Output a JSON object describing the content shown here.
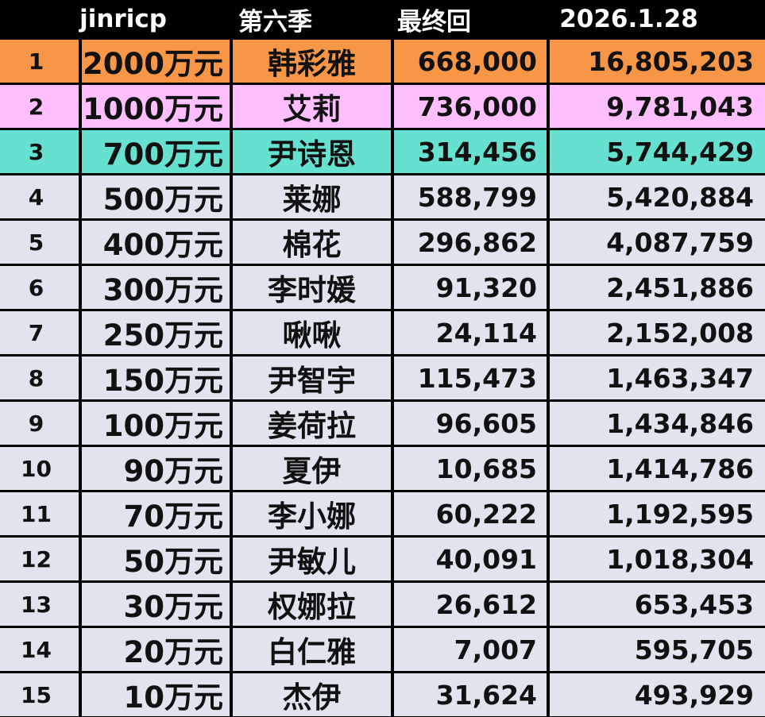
{
  "header": {
    "brand": "jinricp",
    "season": "第六季",
    "episode": "最终回",
    "date": "2026.1.28"
  },
  "colors": {
    "first": "#f79646",
    "second": "#ffbfff",
    "third": "#66e0cf",
    "rest": "#dfe4ee",
    "background": "#000000"
  },
  "rows": [
    {
      "rank": "1",
      "prize": "2000万元",
      "name": "韩彩雅",
      "votes": "668,000",
      "total": "16,805,203"
    },
    {
      "rank": "2",
      "prize": "1000万元",
      "name": "艾莉",
      "votes": "736,000",
      "total": "9,781,043"
    },
    {
      "rank": "3",
      "prize": "700万元",
      "name": "尹诗恩",
      "votes": "314,456",
      "total": "5,744,429"
    },
    {
      "rank": "4",
      "prize": "500万元",
      "name": "莱娜",
      "votes": "588,799",
      "total": "5,420,884"
    },
    {
      "rank": "5",
      "prize": "400万元",
      "name": "棉花",
      "votes": "296,862",
      "total": "4,087,759"
    },
    {
      "rank": "6",
      "prize": "300万元",
      "name": "李时媛",
      "votes": "91,320",
      "total": "2,451,886"
    },
    {
      "rank": "7",
      "prize": "250万元",
      "name": "啾啾",
      "votes": "24,114",
      "total": "2,152,008"
    },
    {
      "rank": "8",
      "prize": "150万元",
      "name": "尹智宇",
      "votes": "115,473",
      "total": "1,463,347"
    },
    {
      "rank": "9",
      "prize": "100万元",
      "name": "姜荷拉",
      "votes": "96,605",
      "total": "1,434,846"
    },
    {
      "rank": "10",
      "prize": "90万元",
      "name": "夏伊",
      "votes": "10,685",
      "total": "1,414,786"
    },
    {
      "rank": "11",
      "prize": "70万元",
      "name": "李小娜",
      "votes": "60,222",
      "total": "1,192,595"
    },
    {
      "rank": "12",
      "prize": "50万元",
      "name": "尹敏儿",
      "votes": "40,091",
      "total": "1,018,304"
    },
    {
      "rank": "13",
      "prize": "30万元",
      "name": "权娜拉",
      "votes": "26,612",
      "total": "653,453"
    },
    {
      "rank": "14",
      "prize": "20万元",
      "name": "白仁雅",
      "votes": "7,007",
      "total": "595,705"
    },
    {
      "rank": "15",
      "prize": "10万元",
      "name": "杰伊",
      "votes": "31,624",
      "total": "493,929"
    }
  ]
}
